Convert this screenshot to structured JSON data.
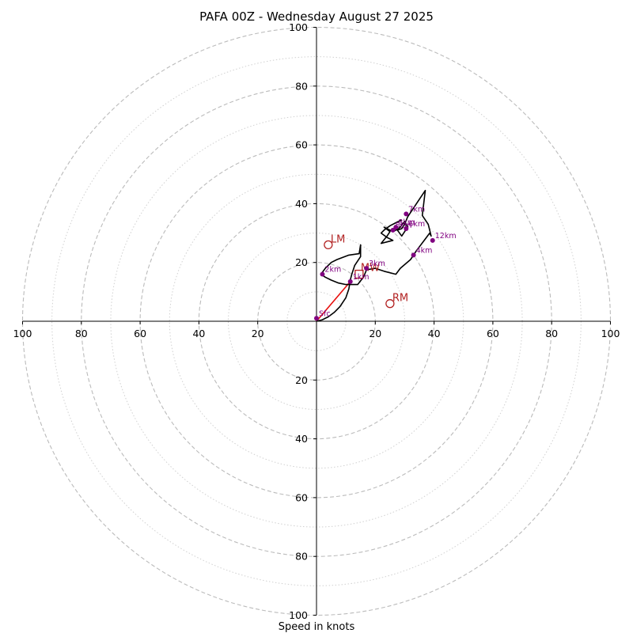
{
  "chart_data": {
    "type": "hodograph",
    "title": "PAFA 00Z - Wednesday August 27 2025",
    "xlabel": "Speed in knots",
    "xlim": [
      -100,
      100
    ],
    "ylim": [
      -100,
      100
    ],
    "major_rings": [
      20,
      40,
      60,
      80,
      100
    ],
    "minor_rings": [
      10,
      30,
      50,
      70,
      90
    ],
    "x_ticks": [
      {
        "value": -100,
        "label": "100"
      },
      {
        "value": -80,
        "label": "80"
      },
      {
        "value": -60,
        "label": "60"
      },
      {
        "value": -40,
        "label": "40"
      },
      {
        "value": -20,
        "label": "20"
      },
      {
        "value": 20,
        "label": "20"
      },
      {
        "value": 40,
        "label": "40"
      },
      {
        "value": 60,
        "label": "60"
      },
      {
        "value": 80,
        "label": "80"
      },
      {
        "value": 100,
        "label": "100"
      }
    ],
    "y_ticks": [
      {
        "value": 100,
        "label": "100"
      },
      {
        "value": 80,
        "label": "80"
      },
      {
        "value": 60,
        "label": "60"
      },
      {
        "value": 40,
        "label": "40"
      },
      {
        "value": 20,
        "label": "20"
      },
      {
        "value": -20,
        "label": "20"
      },
      {
        "value": -40,
        "label": "40"
      },
      {
        "value": -60,
        "label": "60"
      },
      {
        "value": -80,
        "label": "80"
      },
      {
        "value": -100,
        "label": "100"
      }
    ],
    "trace_color": "#000000",
    "trace": [
      [
        0,
        0
      ],
      [
        2,
        0.5
      ],
      [
        4,
        1.5
      ],
      [
        6,
        3
      ],
      [
        8,
        5
      ],
      [
        10,
        8
      ],
      [
        11,
        11
      ],
      [
        11.5,
        14
      ],
      [
        12,
        16
      ],
      [
        13,
        19
      ],
      [
        15,
        22
      ],
      [
        15,
        26
      ],
      [
        14.5,
        23
      ],
      [
        11,
        22.5
      ],
      [
        7,
        21
      ],
      [
        5,
        20
      ],
      [
        3,
        18
      ],
      [
        1.5,
        16
      ],
      [
        3,
        15
      ],
      [
        5,
        14
      ],
      [
        7.5,
        13
      ],
      [
        10,
        12.5
      ],
      [
        14,
        12.5
      ],
      [
        16,
        15
      ],
      [
        17,
        17.5
      ],
      [
        20,
        18
      ],
      [
        23,
        17
      ],
      [
        27,
        16
      ],
      [
        28.5,
        18
      ],
      [
        32,
        21
      ],
      [
        34,
        24
      ],
      [
        37,
        28
      ],
      [
        38.5,
        30
      ],
      [
        39,
        29
      ],
      [
        38,
        33
      ],
      [
        36,
        36
      ],
      [
        37,
        44.5
      ],
      [
        34,
        40
      ],
      [
        31,
        35.5
      ],
      [
        30,
        33
      ],
      [
        29,
        31.5
      ],
      [
        27.5,
        31
      ],
      [
        29,
        29
      ],
      [
        31,
        32
      ],
      [
        30,
        34
      ],
      [
        28,
        31.5
      ],
      [
        26,
        30.5
      ],
      [
        23,
        32
      ],
      [
        25,
        30.5
      ],
      [
        24,
        29
      ],
      [
        22,
        26.5
      ],
      [
        24,
        27
      ],
      [
        26,
        27.5
      ],
      [
        24,
        28.5
      ],
      [
        22,
        30
      ],
      [
        23,
        31
      ],
      [
        25,
        32.5
      ],
      [
        27,
        33.5
      ],
      [
        29,
        34.5
      ]
    ],
    "shear_color": "#e8100e",
    "shear_segment": [
      [
        0,
        0
      ],
      [
        11.5,
        13.5
      ]
    ],
    "points_color": "#800080",
    "height_points": [
      {
        "label": "Sfc",
        "u": 0,
        "v": 1
      },
      {
        "label": "1km",
        "u": 11.5,
        "v": 13.5
      },
      {
        "label": "2km",
        "u": 2,
        "v": 16
      },
      {
        "label": "3km",
        "u": 17,
        "v": 18
      },
      {
        "label": "4km",
        "u": 33,
        "v": 22.5
      },
      {
        "label": "5km",
        "u": 26,
        "v": 31
      },
      {
        "label": "6km",
        "u": 30.5,
        "v": 31.5
      },
      {
        "label": "7km",
        "u": 30.5,
        "v": 36.5
      },
      {
        "label": "8km",
        "u": 27,
        "v": 32
      },
      {
        "label": "12km",
        "u": 39.5,
        "v": 27.5
      }
    ],
    "storm_motion_color": "#b22222",
    "storm_motions": [
      {
        "label": "LM",
        "u": 4,
        "v": 26
      },
      {
        "label": "RM",
        "u": 25,
        "v": 6
      },
      {
        "label": "MW",
        "u": 14.5,
        "v": 16
      }
    ]
  }
}
